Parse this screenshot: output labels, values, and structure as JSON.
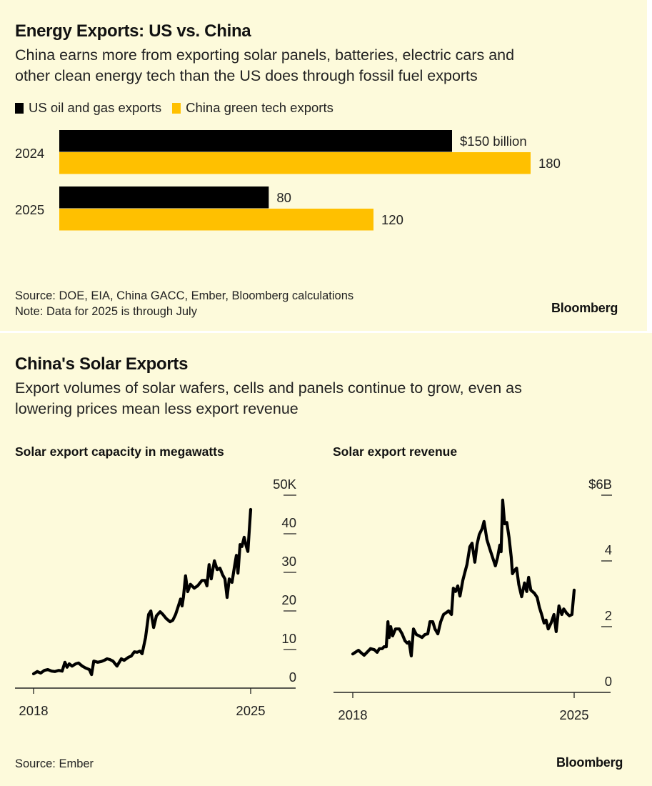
{
  "top_panel": {
    "title": "Energy Exports: US vs. China",
    "subtitle_line1": "China earns more from exporting solar panels, batteries, electric cars and",
    "subtitle_line2": "other clean energy tech than the US does through fossil fuel exports",
    "source": "Source: DOE, EIA, China GACC, Ember, Bloomberg calculations",
    "note": "Note: Data for 2025 is through July",
    "brand": "Bloomberg"
  },
  "bottom_panel": {
    "title": "China's Solar Exports",
    "subtitle_line1": "Export volumes of solar wafers, cells and panels continue to grow, even as",
    "subtitle_line2": "lowering prices mean less export revenue",
    "source": "Source: Ember",
    "brand": "Bloomberg"
  },
  "colors": {
    "background": "#fdfadb",
    "us": "#000000",
    "china": "#ffc000",
    "line": "#000000"
  },
  "chart_data": [
    {
      "type": "bar",
      "orientation": "horizontal",
      "title": "Energy Exports: US vs. China",
      "categories": [
        "2024",
        "2025"
      ],
      "series": [
        {
          "name": "US oil and gas exports",
          "color": "#000000",
          "values": [
            150,
            80
          ],
          "labels": [
            "$150 billion",
            "80"
          ]
        },
        {
          "name": "China green tech exports",
          "color": "#ffc000",
          "values": [
            180,
            120
          ],
          "labels": [
            "180",
            "120"
          ]
        }
      ],
      "unit": "billion USD",
      "xlim": [
        0,
        180
      ],
      "legend": "top-left",
      "grid": false
    },
    {
      "type": "line",
      "title": "Solar export capacity in megawatts",
      "xlabel": "",
      "ylabel": "",
      "x_ticks": [
        "2018",
        "2025"
      ],
      "x_range": [
        2018,
        2025
      ],
      "y_ticks": [
        "50K",
        "40",
        "30",
        "20",
        "10",
        "0"
      ],
      "y_tick_values": [
        50,
        40,
        30,
        20,
        10,
        0
      ],
      "ylim": [
        0,
        50
      ],
      "y_unit": "thousand MW",
      "y_axis_side": "right",
      "grid": false,
      "series": [
        {
          "name": "Solar export capacity (thousand MW)",
          "x": [
            2018.0,
            2018.12,
            2018.23,
            2018.35,
            2018.46,
            2018.58,
            2018.69,
            2018.81,
            2018.92,
            2019.01,
            2019.08,
            2019.15,
            2019.24,
            2019.36,
            2019.45,
            2019.57,
            2019.68,
            2019.8,
            2019.87,
            2019.94,
            2020.07,
            2020.19,
            2020.28,
            2020.37,
            2020.46,
            2020.56,
            2020.69,
            2020.83,
            2020.92,
            2021.06,
            2021.15,
            2021.25,
            2021.34,
            2021.43,
            2021.5,
            2021.61,
            2021.71,
            2021.78,
            2021.87,
            2021.96,
            2022.08,
            2022.17,
            2022.28,
            2022.4,
            2022.49,
            2022.58,
            2022.67,
            2022.74,
            2022.79,
            2022.83,
            2022.9,
            2022.97,
            2023.06,
            2023.18,
            2023.29,
            2023.43,
            2023.53,
            2023.59,
            2023.66,
            2023.73,
            2023.83,
            2023.92,
            2024.01,
            2024.1,
            2024.17,
            2024.24,
            2024.31,
            2024.4,
            2024.47,
            2024.54,
            2024.59,
            2024.66,
            2024.72,
            2024.79,
            2024.86,
            2024.91,
            2025.0
          ],
          "y": [
            3.7,
            4.3,
            3.9,
            4.6,
            4.8,
            4.4,
            4.3,
            4.6,
            4.4,
            6.7,
            5.4,
            6.3,
            5.7,
            6.3,
            6.5,
            5.7,
            5.2,
            4.8,
            3.5,
            7.0,
            6.7,
            6.9,
            7.2,
            7.6,
            7.4,
            7.0,
            5.7,
            7.6,
            7.2,
            8.0,
            8.3,
            9.4,
            9.3,
            9.6,
            8.9,
            13.1,
            19.1,
            20.0,
            15.7,
            18.7,
            19.8,
            19.1,
            18.0,
            17.2,
            17.6,
            19.1,
            21.3,
            23.1,
            21.3,
            23.5,
            29.1,
            25.0,
            26.9,
            25.9,
            26.5,
            27.9,
            27.9,
            26.5,
            32.0,
            28.3,
            33.0,
            30.7,
            31.1,
            29.3,
            28.3,
            23.5,
            28.3,
            27.4,
            31.1,
            34.4,
            29.8,
            37.2,
            36.7,
            39.1,
            36.7,
            35.4,
            46.3
          ]
        }
      ]
    },
    {
      "type": "line",
      "title": "Solar export revenue",
      "xlabel": "",
      "ylabel": "",
      "x_ticks": [
        "2018",
        "2025"
      ],
      "x_range": [
        2018,
        2025
      ],
      "y_ticks": [
        "$6B",
        "4",
        "2",
        "0"
      ],
      "y_tick_values": [
        6,
        4,
        2,
        0
      ],
      "ylim": [
        0,
        6
      ],
      "y_unit": "billion USD",
      "y_axis_side": "right",
      "grid": false,
      "series": [
        {
          "name": "Solar export revenue ($B)",
          "x": [
            2018.0,
            2018.11,
            2018.18,
            2018.27,
            2018.36,
            2018.47,
            2018.56,
            2018.68,
            2018.77,
            2018.84,
            2018.93,
            2018.99,
            2019.06,
            2019.11,
            2019.15,
            2019.2,
            2019.26,
            2019.35,
            2019.47,
            2019.56,
            2019.65,
            2019.72,
            2019.78,
            2019.85,
            2019.92,
            2020.01,
            2020.1,
            2020.19,
            2020.28,
            2020.37,
            2020.44,
            2020.53,
            2020.6,
            2020.69,
            2020.78,
            2020.87,
            2020.96,
            2021.03,
            2021.12,
            2021.18,
            2021.25,
            2021.32,
            2021.39,
            2021.48,
            2021.55,
            2021.61,
            2021.7,
            2021.77,
            2021.86,
            2021.93,
            2022.0,
            2022.09,
            2022.15,
            2022.24,
            2022.33,
            2022.42,
            2022.51,
            2022.58,
            2022.65,
            2022.69,
            2022.74,
            2022.8,
            2022.87,
            2022.94,
            2023.01,
            2023.05,
            2023.12,
            2023.18,
            2023.25,
            2023.34,
            2023.43,
            2023.5,
            2023.56,
            2023.63,
            2023.74,
            2023.83,
            2023.9,
            2023.96,
            2024.05,
            2024.11,
            2024.18,
            2024.27,
            2024.36,
            2024.43,
            2024.52,
            2024.61,
            2024.67,
            2024.76,
            2024.85,
            2024.93,
            2025.0
          ],
          "y": [
            1.17,
            1.24,
            1.28,
            1.2,
            1.13,
            1.24,
            1.33,
            1.3,
            1.22,
            1.33,
            1.33,
            1.39,
            1.39,
            2.15,
            1.67,
            2.0,
            1.72,
            1.93,
            1.93,
            1.78,
            1.57,
            1.5,
            1.54,
            1.11,
            1.93,
            1.76,
            1.72,
            1.67,
            1.76,
            1.78,
            2.15,
            2.15,
            1.93,
            1.78,
            2.15,
            2.37,
            2.43,
            2.48,
            2.37,
            3.17,
            3.07,
            3.24,
            2.93,
            3.41,
            3.67,
            3.89,
            4.43,
            4.54,
            3.96,
            4.5,
            4.8,
            4.98,
            5.2,
            4.65,
            4.37,
            4.11,
            3.85,
            4.11,
            4.48,
            4.28,
            5.85,
            5.13,
            5.17,
            4.72,
            4.11,
            3.61,
            3.72,
            3.78,
            3.28,
            2.91,
            3.33,
            3.07,
            3.5,
            3.11,
            3.02,
            2.89,
            2.59,
            2.41,
            2.11,
            2.2,
            1.93,
            2.11,
            2.37,
            1.85,
            2.63,
            2.37,
            2.54,
            2.41,
            2.33,
            2.37,
            3.11
          ]
        }
      ]
    }
  ]
}
